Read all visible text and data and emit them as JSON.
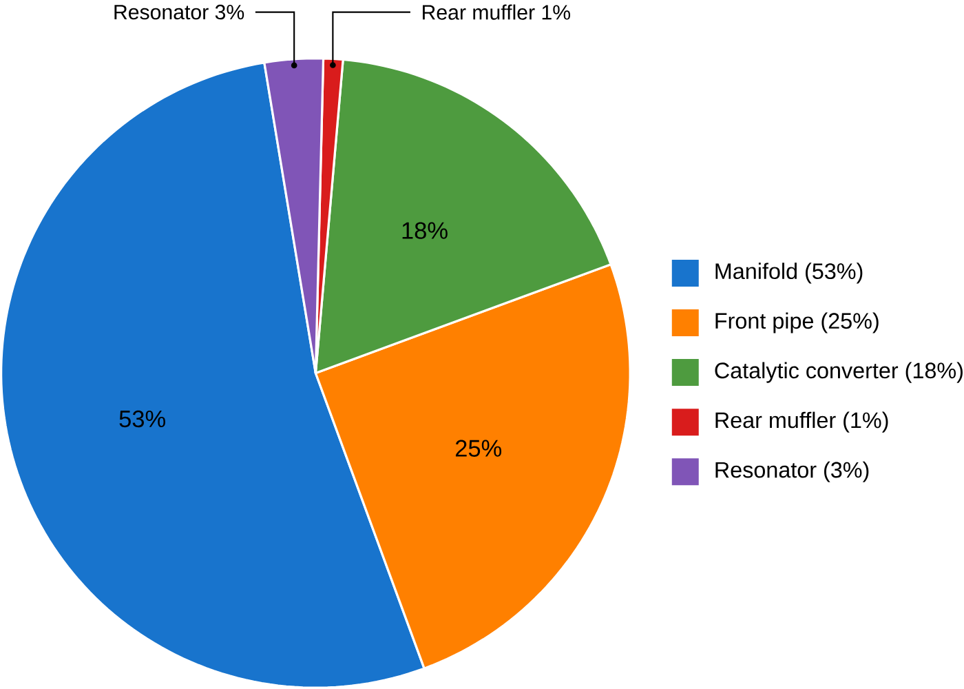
{
  "chart_data": {
    "type": "pie",
    "categories": [
      "Manifold (53%)",
      "Front pipe (25%)",
      "Catalytic converter (18%)",
      "Rear muffler (1%)",
      "Resonator (3%)"
    ],
    "values": [
      53,
      25,
      18,
      1,
      3
    ],
    "colors": [
      "#1874cd",
      "#ff8000",
      "#4e9b3f",
      "#d91c1c",
      "#8055b7"
    ],
    "value_labels": [
      "53%",
      "25%",
      "18%",
      null,
      null
    ],
    "annotations": [
      "Rear muffler 1%",
      "Resonator 3%"
    ],
    "legend": "right"
  }
}
